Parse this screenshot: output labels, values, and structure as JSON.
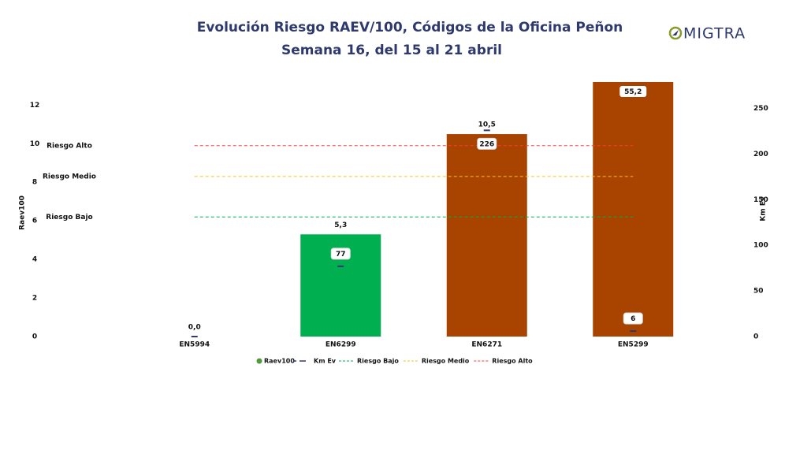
{
  "chart_data": {
    "type": "bar",
    "title": "Evolución Riesgo RAEV/100, Códigos de la Oficina Peñon",
    "subtitle": "Semana 16, del 15 al 21 abril",
    "logo": "MIGTRA",
    "y_label": "Raev100",
    "y2_label": "Km Ev",
    "categories": [
      "EN5994",
      "EN6299",
      "EN6271",
      "EN5299"
    ],
    "series": [
      {
        "name": "Raev100",
        "color": "#4e9a3c",
        "colors": [
          "#00b050",
          "#00b050",
          "#a84300",
          "#a84300"
        ],
        "values": [
          0.0,
          5.3,
          10.5,
          55.2
        ],
        "value_labels": [
          "0,0",
          "5,3",
          "10,5",
          "55,2"
        ]
      },
      {
        "name": "Km Ev",
        "axis": "y2",
        "color": "#2e3a6e",
        "values": [
          0,
          77,
          226,
          6
        ],
        "value_labels": [
          null,
          "77",
          "226",
          "6"
        ]
      }
    ],
    "thresholds": [
      {
        "name": "Riesgo Bajo",
        "value": 6.2,
        "color": "#00b050"
      },
      {
        "name": "Riesgo Medio",
        "value": 8.3,
        "color": "#f5c518"
      },
      {
        "name": "Riesgo Alto",
        "value": 9.9,
        "color": "#ff3b3b"
      }
    ],
    "ylim": [
      0,
      13.2
    ],
    "yticks": [
      0,
      2,
      4,
      6,
      8,
      10,
      12
    ],
    "y2lim": [
      0,
      279
    ],
    "y2ticks": [
      0,
      50,
      100,
      150,
      200,
      250
    ],
    "grid": false
  }
}
